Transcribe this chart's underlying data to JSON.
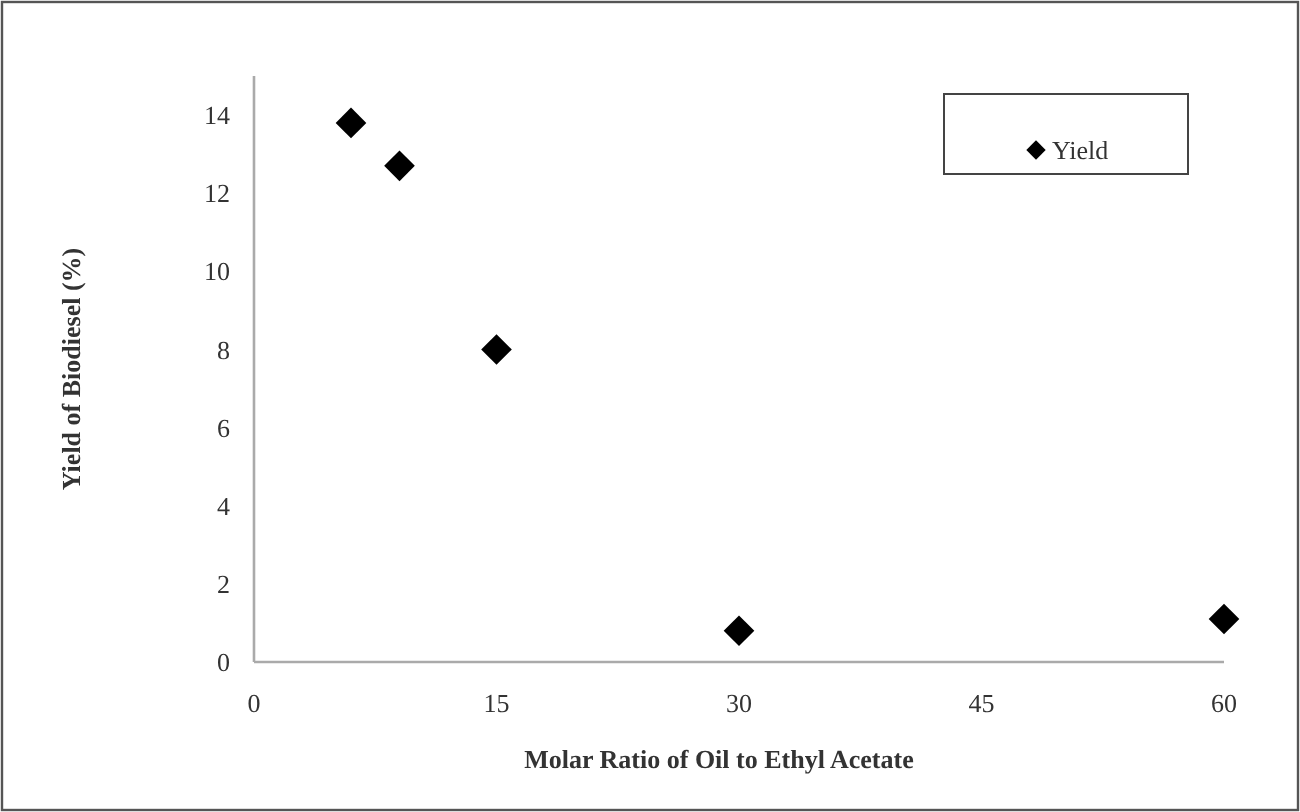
{
  "chart_data": {
    "type": "scatter",
    "xlabel": "Molar Ratio of Oil to Ethyl Acetate",
    "ylabel": "Yield of Biodiesel (%)",
    "x": [
      6,
      9,
      15,
      30,
      60
    ],
    "series": [
      {
        "name": "Yield",
        "color": "#000000",
        "values": [
          13.8,
          12.7,
          8.0,
          0.8,
          1.1
        ]
      }
    ],
    "xlim": [
      0,
      60
    ],
    "xticks": [
      0,
      15,
      30,
      45,
      60
    ],
    "ylim": [
      0,
      15
    ],
    "yticks": [
      0,
      2,
      4,
      6,
      8,
      10,
      12,
      14
    ],
    "marker": "diamond",
    "legend": "top right",
    "grid": false
  }
}
